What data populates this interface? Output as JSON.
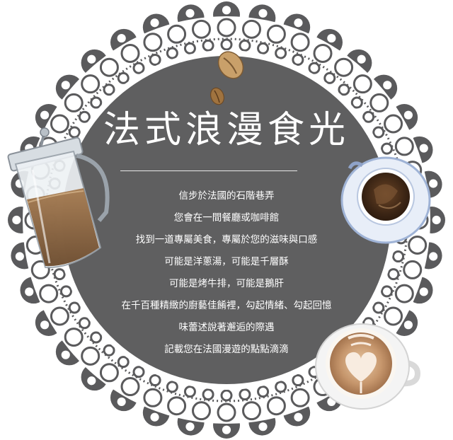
{
  "title": "法式浪漫食光",
  "poem_lines": [
    "信步於法國的石階巷弄",
    "您會在一間餐廳或咖啡館",
    "找到一道專屬美食，專屬於您的滋味與口感",
    "可能是洋蔥湯，可能是千層酥",
    "可能是烤牛排，可能是鵝肝",
    "在千百種精緻的廚藝佳餚裡，勾起情緒、勾起回憶",
    "味蕾述說著邂逅的際遇",
    "記載您在法國漫遊的點點滴滴"
  ],
  "colors": {
    "circle": "#5f5f60",
    "lace": "#5a5a5c",
    "text": "#ffffff",
    "coffee": "#4a2e1c",
    "latte": "#c99a72"
  },
  "icons": [
    "lace-doily-frame",
    "coffee-bean-icon",
    "french-press-icon",
    "coffee-cup-icon",
    "latte-art-cup-icon"
  ]
}
